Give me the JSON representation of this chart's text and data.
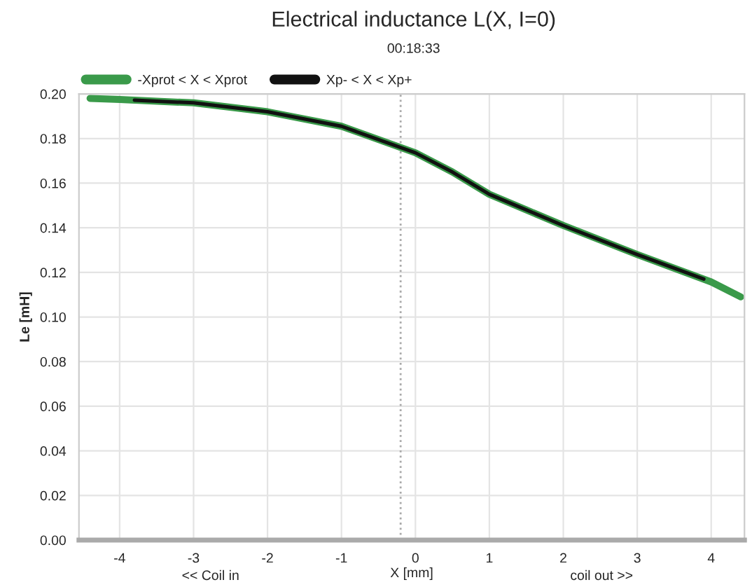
{
  "chart_data": {
    "type": "line",
    "title": "Electrical inductance L(X, I=0)",
    "subtitle": "00:18:33",
    "xlabel": "X [mm]",
    "ylabel": "Le [mH]",
    "annotations": [
      "<< Coil in",
      "coil out >>"
    ],
    "series": [
      {
        "name": "-Xprot < X < Xprot",
        "color": "#3a9a4a",
        "x": [
          -4.4,
          -4.0,
          -3.0,
          -2.0,
          -1.0,
          0.0,
          0.5,
          1.0,
          1.5,
          2.0,
          3.0,
          4.0,
          4.4
        ],
        "values": [
          0.198,
          0.1975,
          0.196,
          0.192,
          0.1855,
          0.1736,
          0.165,
          0.155,
          0.148,
          0.141,
          0.128,
          0.1157,
          0.109
        ]
      },
      {
        "name": "Xp- < X < Xp+",
        "color": "#111111",
        "x": [
          -3.8,
          -3.0,
          -2.0,
          -1.0,
          0.0,
          0.5,
          1.0,
          1.5,
          2.0,
          3.0,
          3.9
        ],
        "values": [
          0.1972,
          0.196,
          0.192,
          0.1855,
          0.1736,
          0.165,
          0.155,
          0.148,
          0.141,
          0.128,
          0.117
        ]
      }
    ],
    "xlim": [
      -4.55,
      4.45
    ],
    "xticks": [
      -4,
      -3,
      -2,
      -1,
      0,
      1,
      2,
      3,
      4
    ],
    "ylim": [
      0,
      0.2
    ],
    "yticks": [
      {
        "value": 0,
        "label": "0.00"
      },
      {
        "value": 0.02,
        "label": "0.02"
      },
      {
        "value": 0.04,
        "label": "0.04"
      },
      {
        "value": 0.06,
        "label": "0.06"
      },
      {
        "value": 0.08,
        "label": "0.08"
      },
      {
        "value": 0.1,
        "label": "0.10"
      },
      {
        "value": 0.12,
        "label": "0.12"
      },
      {
        "value": 0.14,
        "label": "0.14"
      },
      {
        "value": 0.16,
        "label": "0.16"
      },
      {
        "value": 0.18,
        "label": "0.18"
      },
      {
        "value": 0.2,
        "label": "0.20"
      }
    ],
    "ref_lines": [
      {
        "axis": "x",
        "value": -0.2,
        "color": "#aaaaaa",
        "line_style": "dotted"
      }
    ],
    "grid": true,
    "legend": "top left",
    "line_style": "solid",
    "marker": "none"
  }
}
